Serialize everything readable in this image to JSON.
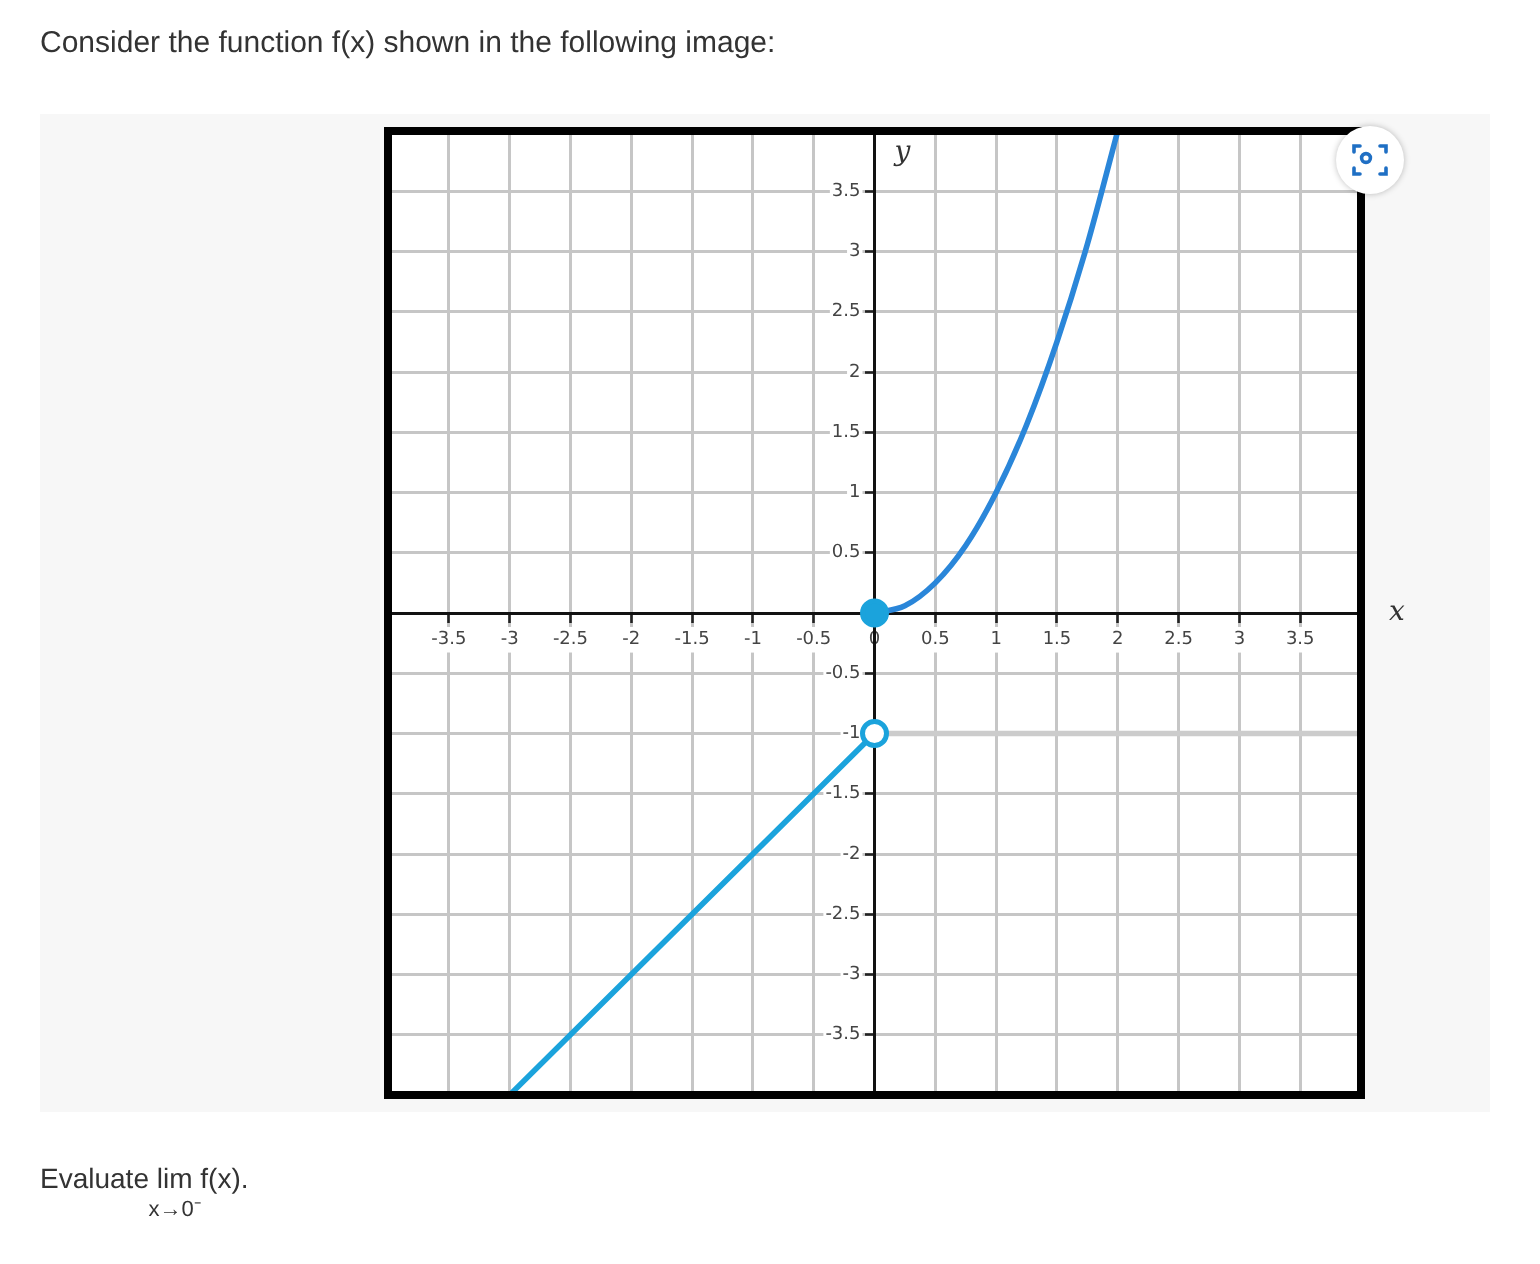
{
  "chart_data": {
    "type": "line",
    "title": "Consider the function f(x) shown in the following image:",
    "xlabel": "x",
    "ylabel": "y",
    "annotations": [
      "Evaluate lim$_{x→0⁻}$ f(x)."
    ],
    "series": [
      {
        "x": [
          -3,
          0
        ],
        "values": [
          -4,
          -1
        ],
        "color": "#1ba3dc"
      },
      {
        "x": [
          0,
          0.25,
          0.5,
          0.75,
          1,
          1.25,
          1.5,
          1.75,
          2
        ],
        "values": [
          0,
          0.06,
          0.25,
          0.56,
          1,
          1.56,
          2.25,
          3.06,
          4
        ],
        "color": "#2a86d9"
      },
      {
        "x": [
          0,
          4
        ],
        "values": [
          -1,
          -1
        ],
        "color": "#cccccc"
      },
      {
        "type": "scatter",
        "x": [
          0,
          0
        ],
        "values": [
          0,
          -1
        ],
        "color": "#1ba3dc",
        "colors": [
          "#1ba3dc",
          "#ffffff"
        ],
        "marker": "circle"
      }
    ],
    "xlim": [
      -4,
      4
    ],
    "ylim": [
      -4,
      4
    ],
    "xticks": [
      -3.5,
      -3,
      -2.5,
      -2,
      -1.5,
      -1,
      -0.5,
      0,
      0.5,
      1,
      1.5,
      2,
      2.5,
      3,
      3.5
    ],
    "yticks": [
      -3.5,
      -3,
      -2.5,
      -2,
      -1.5,
      -1,
      -0.5,
      0.5,
      1,
      1.5,
      2,
      2.5,
      3,
      3.5
    ],
    "grid": true,
    "legend": false,
    "marker": "none"
  }
}
